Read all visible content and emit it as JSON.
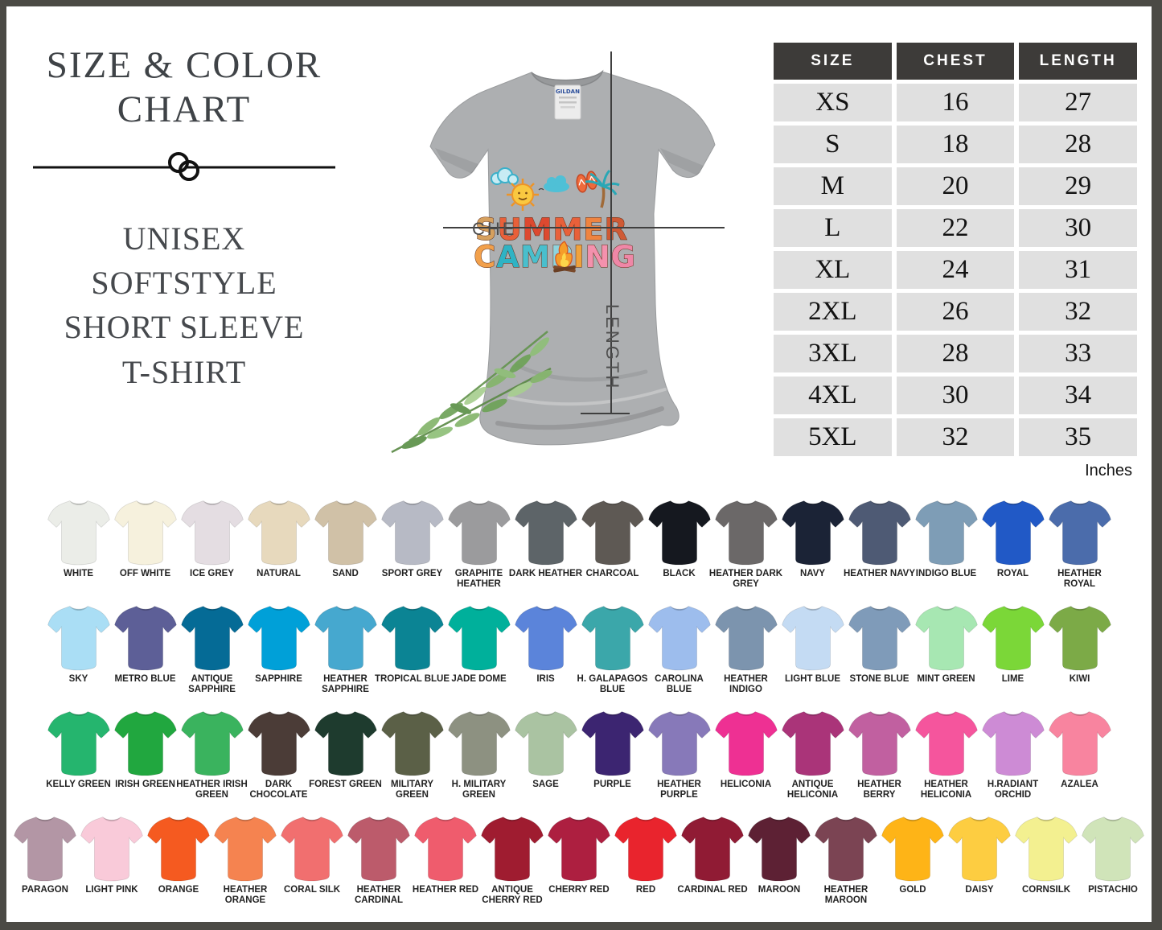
{
  "header": {
    "title_line1": "SIZE & COLOR",
    "title_line2": "CHART",
    "subtitle_lines": [
      "UNISEX",
      "SOFTSTYLE",
      "SHORT SLEEVE",
      "T-SHIRT"
    ]
  },
  "shirt_preview": {
    "brand_label": "GILDAN",
    "design_line1": "SUMMER",
    "design_line1_colors": [
      "#d6a05e",
      "#e8603a",
      "#dd4930",
      "#e8603a",
      "#ef8440",
      "#cf5a35"
    ],
    "design_line2": "CAMPING",
    "design_line2_colors": [
      "#f2a04b",
      "#2fb3c4",
      "#49bfcd",
      "#8ed4de",
      "#f0a23c",
      "#f491ad",
      "#ef87a7"
    ],
    "chest_label": "CHE",
    "length_label": "LENGTH"
  },
  "size_table": {
    "headers": [
      "SIZE",
      "CHEST",
      "LENGTH"
    ],
    "rows": [
      [
        "XS",
        "16",
        "27"
      ],
      [
        "S",
        "18",
        "28"
      ],
      [
        "M",
        "20",
        "29"
      ],
      [
        "L",
        "22",
        "30"
      ],
      [
        "XL",
        "24",
        "31"
      ],
      [
        "2XL",
        "26",
        "32"
      ],
      [
        "3XL",
        "28",
        "33"
      ],
      [
        "4XL",
        "30",
        "34"
      ],
      [
        "5XL",
        "32",
        "35"
      ]
    ],
    "unit_note": "Inches"
  },
  "chart_data": {
    "type": "table",
    "title": "SIZE & COLOR CHART",
    "columns": [
      "SIZE",
      "CHEST",
      "LENGTH"
    ],
    "rows": [
      [
        "XS",
        16,
        27
      ],
      [
        "S",
        18,
        28
      ],
      [
        "M",
        20,
        29
      ],
      [
        "L",
        22,
        30
      ],
      [
        "XL",
        24,
        31
      ],
      [
        "2XL",
        26,
        32
      ],
      [
        "3XL",
        28,
        33
      ],
      [
        "4XL",
        30,
        34
      ],
      [
        "5XL",
        32,
        35
      ]
    ],
    "units": "Inches"
  },
  "color_grid": {
    "rows": [
      [
        {
          "name": "WHITE",
          "hex": "#ebede8"
        },
        {
          "name": "OFF WHITE",
          "hex": "#f6f1dd"
        },
        {
          "name": "ICE GREY",
          "hex": "#e4dde2"
        },
        {
          "name": "NATURAL",
          "hex": "#e7d9bd"
        },
        {
          "name": "SAND",
          "hex": "#d0c1a7"
        },
        {
          "name": "SPORT GREY",
          "hex": "#b7bac5"
        },
        {
          "name": "GRAPHITE HEATHER",
          "hex": "#9b9b9d"
        },
        {
          "name": "DARK HEATHER",
          "hex": "#5d6468"
        },
        {
          "name": "CHARCOAL",
          "hex": "#5e5954"
        },
        {
          "name": "BLACK",
          "hex": "#15181f"
        },
        {
          "name": "HEATHER DARK GREY",
          "hex": "#6b6868"
        },
        {
          "name": "NAVY",
          "hex": "#1b2336"
        },
        {
          "name": "HEATHER NAVY",
          "hex": "#4e5a74"
        },
        {
          "name": "INDIGO BLUE",
          "hex": "#7e9db6"
        },
        {
          "name": "ROYAL",
          "hex": "#2159c6"
        },
        {
          "name": "HEATHER ROYAL",
          "hex": "#4b6cab"
        }
      ],
      [
        {
          "name": "SKY",
          "hex": "#aadef5"
        },
        {
          "name": "METRO BLUE",
          "hex": "#5d5f97"
        },
        {
          "name": "ANTIQUE SAPPHIRE",
          "hex": "#056b96"
        },
        {
          "name": "SAPPHIRE",
          "hex": "#00a0d8"
        },
        {
          "name": "HEATHER SAPPHIRE",
          "hex": "#46a8cf"
        },
        {
          "name": "TROPICAL BLUE",
          "hex": "#0b8494"
        },
        {
          "name": "JADE DOME",
          "hex": "#00b09b"
        },
        {
          "name": "IRIS",
          "hex": "#5b84da"
        },
        {
          "name": "H. GALAPAGOS BLUE",
          "hex": "#3ba7aa"
        },
        {
          "name": "CAROLINA BLUE",
          "hex": "#9dbded"
        },
        {
          "name": "HEATHER INDIGO",
          "hex": "#7c94ae"
        },
        {
          "name": "LIGHT BLUE",
          "hex": "#c4dbf3"
        },
        {
          "name": "STONE BLUE",
          "hex": "#7f9bb9"
        },
        {
          "name": "MINT GREEN",
          "hex": "#a7e7b2"
        },
        {
          "name": "LIME",
          "hex": "#7bd738"
        },
        {
          "name": "KIWI",
          "hex": "#7caa47"
        }
      ],
      [
        {
          "name": "KELLY GREEN",
          "hex": "#25b56e"
        },
        {
          "name": "IRISH GREEN",
          "hex": "#21a73f"
        },
        {
          "name": "HEATHER IRISH GREEN",
          "hex": "#3ab35e"
        },
        {
          "name": "DARK CHOCOLATE",
          "hex": "#4b3c37"
        },
        {
          "name": "FOREST GREEN",
          "hex": "#1e3b2e"
        },
        {
          "name": "MILITARY GREEN",
          "hex": "#5b6047"
        },
        {
          "name": "H. MILITARY GREEN",
          "hex": "#8d9181"
        },
        {
          "name": "SAGE",
          "hex": "#aac3a2"
        },
        {
          "name": "PURPLE",
          "hex": "#3c2571"
        },
        {
          "name": "HEATHER PURPLE",
          "hex": "#8779b9"
        },
        {
          "name": "HELICONIA",
          "hex": "#ee3093"
        },
        {
          "name": "ANTIQUE HELICONIA",
          "hex": "#aa3479"
        },
        {
          "name": "HEATHER BERRY",
          "hex": "#c160a0"
        },
        {
          "name": "HEATHER HELICONIA",
          "hex": "#f5559d"
        },
        {
          "name": "H.RADIANT ORCHID",
          "hex": "#cd8bd5"
        },
        {
          "name": "AZALEA",
          "hex": "#f8849f"
        }
      ],
      [
        {
          "name": "PARAGON",
          "hex": "#b396a5"
        },
        {
          "name": "LIGHT PINK",
          "hex": "#f9cad9"
        },
        {
          "name": "ORANGE",
          "hex": "#f55a20"
        },
        {
          "name": "HEATHER ORANGE",
          "hex": "#f58350"
        },
        {
          "name": "CORAL SILK",
          "hex": "#f16f6f"
        },
        {
          "name": "HEATHER CARDINAL",
          "hex": "#bc5b6b"
        },
        {
          "name": "HEATHER RED",
          "hex": "#ef5c6d"
        },
        {
          "name": "ANTIQUE CHERRY RED",
          "hex": "#9f1c30"
        },
        {
          "name": "CHERRY RED",
          "hex": "#ad1f40"
        },
        {
          "name": "RED",
          "hex": "#e9242d"
        },
        {
          "name": "CARDINAL RED",
          "hex": "#901b34"
        },
        {
          "name": "MAROON",
          "hex": "#5d2134"
        },
        {
          "name": "HEATHER MAROON",
          "hex": "#7b4453"
        },
        {
          "name": "GOLD",
          "hex": "#feb417"
        },
        {
          "name": "DAISY",
          "hex": "#fdcd41"
        },
        {
          "name": "CORNSILK",
          "hex": "#f3f090"
        },
        {
          "name": "PISTACHIO",
          "hex": "#d0e4b9"
        }
      ]
    ]
  },
  "colors": {
    "frame": "#4b4a45",
    "title_text": "#3f4347",
    "table_header_bg": "#3d3b39",
    "table_row_bg": "#e0e0e0",
    "shirt_grey": "#adafb1"
  }
}
